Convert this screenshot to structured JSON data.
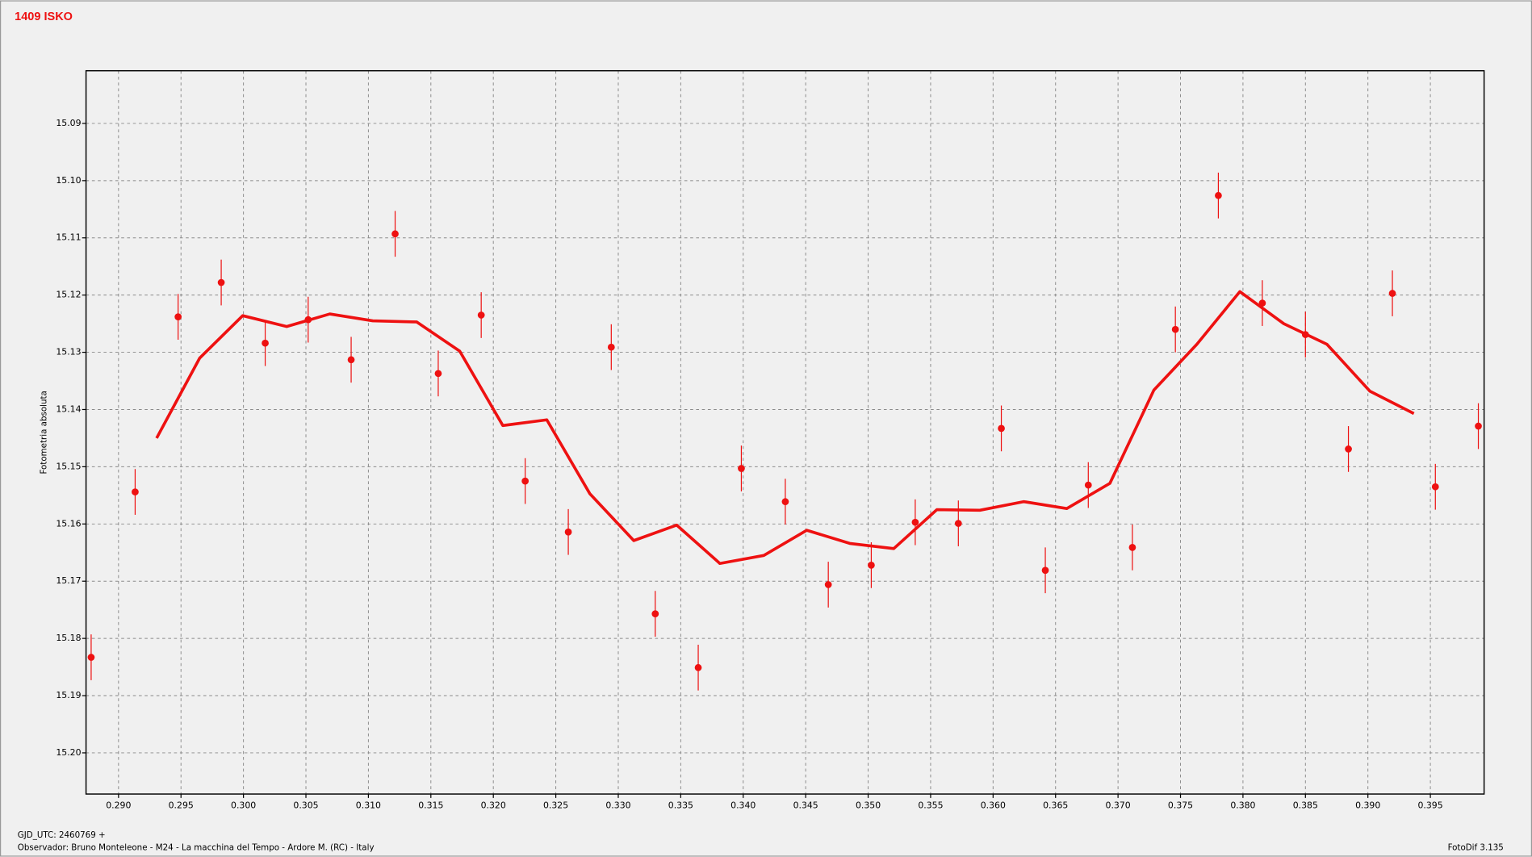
{
  "chart_data": {
    "type": "scatter",
    "title": "1409 ISKO",
    "y_label": "Fotometria absoluta",
    "footer_left": "GJD_UTC: 2460769 +",
    "footer_observer": "Observador: Bruno Monteleone - M24 - La macchina del Tempo - Ardore M. (RC) - Italy",
    "footer_right": "FotoDif 3.135",
    "xlim": [
      0.2874,
      0.3993
    ],
    "ylim": [
      15.0808,
      15.2072
    ],
    "y_inverted": true,
    "grid": true,
    "xticks": [
      {
        "value": 0.29,
        "label": "0.290"
      },
      0.295,
      {
        "value": 0.3,
        "label": "0.300"
      },
      0.305,
      {
        "value": 0.31,
        "label": "0.310"
      },
      0.315,
      {
        "value": 0.32,
        "label": "0.320"
      },
      0.325,
      {
        "value": 0.33,
        "label": "0.330"
      },
      0.335,
      {
        "value": 0.34,
        "label": "0.340"
      },
      0.345,
      {
        "value": 0.35,
        "label": "0.350"
      },
      0.355,
      {
        "value": 0.36,
        "label": "0.360"
      },
      0.365,
      {
        "value": 0.37,
        "label": "0.370"
      },
      0.375,
      {
        "value": 0.38,
        "label": "0.380"
      },
      0.385,
      {
        "value": 0.39,
        "label": "0.390"
      },
      0.395
    ],
    "yticks": [
      15.09,
      {
        "value": 15.1,
        "label": "15.10"
      },
      15.11,
      15.12,
      15.13,
      15.14,
      15.15,
      15.16,
      15.17,
      15.18,
      15.19,
      {
        "value": 15.2,
        "label": "15.20"
      }
    ],
    "series": [
      {
        "color": "#ee1111",
        "style": "points",
        "x": [
          0.28781,
          0.29133,
          0.29477,
          0.29822,
          0.30174,
          0.30518,
          0.30862,
          0.31214,
          0.31559,
          0.31903,
          0.32255,
          0.326,
          0.32944,
          0.33296,
          0.3364,
          0.33985,
          0.34337,
          0.34681,
          0.35025,
          0.35377,
          0.35722,
          0.36066,
          0.36418,
          0.36762,
          0.37115,
          0.37459,
          0.37803,
          0.38155,
          0.385,
          0.38844,
          0.39196,
          0.3954,
          0.39884
        ],
        "values": [
          15.1833,
          15.1544,
          15.1238,
          15.1178,
          15.1284,
          15.1243,
          15.1313,
          15.1093,
          15.1337,
          15.1235,
          15.1525,
          15.1614,
          15.1291,
          15.1757,
          15.1851,
          15.1503,
          15.1561,
          15.1706,
          15.1672,
          15.1597,
          15.1599,
          15.1433,
          15.1681,
          15.1532,
          15.1641,
          15.126,
          15.1026,
          15.1214,
          15.1269,
          15.1469,
          15.1197,
          15.1535,
          15.1429
        ],
        "errors": [
          0.004,
          0.004,
          0.004,
          0.004,
          0.004,
          0.004,
          0.004,
          0.004,
          0.004,
          0.004,
          0.004,
          0.004,
          0.004,
          0.004,
          0.004,
          0.004,
          0.004,
          0.004,
          0.004,
          0.004,
          0.004,
          0.004,
          0.004,
          0.004,
          0.004,
          0.004,
          0.004,
          0.004,
          0.004,
          0.004,
          0.004,
          0.004,
          0.004
        ]
      },
      {
        "color": "#ee1111",
        "style": "line",
        "x": [
          0.29305,
          0.2965,
          0.29994,
          0.30346,
          0.30691,
          0.31035,
          0.31387,
          0.31731,
          0.32076,
          0.32428,
          0.32772,
          0.33124,
          0.33468,
          0.33813,
          0.34165,
          0.34509,
          0.34853,
          0.35205,
          0.3555,
          0.35894,
          0.36246,
          0.3659,
          0.36935,
          0.37287,
          0.37631,
          0.37975,
          0.38327,
          0.38672,
          0.39016,
          0.39368
        ],
        "values": [
          15.145,
          15.131,
          15.1236,
          15.1255,
          15.1233,
          15.1245,
          15.1247,
          15.1298,
          15.1428,
          15.1418,
          15.1547,
          15.1629,
          15.1602,
          15.1669,
          15.1655,
          15.1611,
          15.1634,
          15.1643,
          15.1575,
          15.1576,
          15.1561,
          15.1573,
          15.1529,
          15.1366,
          15.1286,
          15.1194,
          15.125,
          15.1286,
          15.1368,
          15.1407
        ]
      }
    ]
  }
}
